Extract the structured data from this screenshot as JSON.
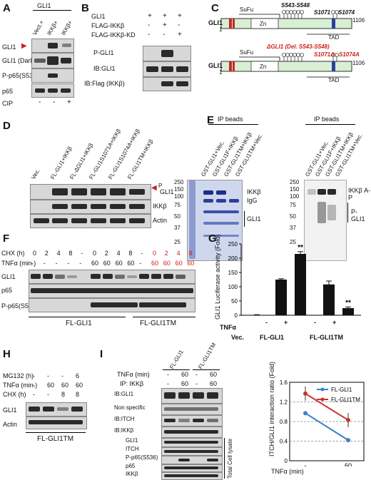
{
  "panels": {
    "A": "A",
    "B": "B",
    "C": "C",
    "D": "D",
    "E": "E",
    "F": "F",
    "G": "G",
    "H": "H",
    "I": "I"
  },
  "panelA": {
    "header": "GLI1",
    "lanes": [
      "Vect.+",
      "IKKβ+",
      "IKKβ+"
    ],
    "rows": [
      "GLI1",
      "GLI1 (Dark E.)",
      "P-p65(S536)",
      "p65"
    ],
    "cip_label": "CIP",
    "cip": [
      "-",
      "-",
      "+"
    ]
  },
  "panelB": {
    "treatments": [
      {
        "label": "GLI1",
        "signs": [
          "+",
          "+",
          "+"
        ]
      },
      {
        "label": "FLAG-IKKβ",
        "signs": [
          "-",
          "+",
          "-"
        ]
      },
      {
        "label": "FLAG-IKKβ-KD",
        "signs": [
          "-",
          "-",
          "+"
        ]
      }
    ],
    "rows": [
      "P-GLI1",
      "IB:GLI1",
      "IB:Flag (IKKβ)"
    ]
  },
  "panelC": {
    "gli1": "GLI1",
    "sufu": "SuFu",
    "zn": "Zn",
    "tad": "TAD",
    "end": "1106",
    "start": "1",
    "top_sites": "S543-S548",
    "s1071": "S1071",
    "s1074": "S1074",
    "mut_deletion": "ΔGLI1 (Del. S543-S548)",
    "s1071a": "S1071A",
    "s1074a": "S1074A"
  },
  "panelD": {
    "lanes": [
      "Vec.",
      "FL-GLI1+IKKβ",
      "FL-ΔGLI1+IKKβ",
      "FL-GLI1S1071A+IKKβ",
      "FL-GLI1S1074A+IKKβ",
      "FL-GLI1TM+IKKβ"
    ],
    "rows": [
      "P",
      "GLI1",
      "IKKβ",
      "Actin"
    ]
  },
  "panelE": {
    "title": "IP beads",
    "lanes": [
      "GST-GLI1+Vec.",
      "GST-GLI1F+IKKβ",
      "GST-GLI1TM+IKKβ",
      "GST-GLI1TM+Vec."
    ],
    "mw": [
      "250",
      "150",
      "100",
      "75",
      "50",
      "37",
      "25"
    ],
    "left_labels": [
      "IKKβ",
      "IgG",
      "GLI1"
    ],
    "right_labels": [
      "IKKβ A-P",
      "P-GLI1"
    ]
  },
  "panelF": {
    "chx_label": "CHX (h)",
    "tnf_label": "TNFα (min.)",
    "chx": [
      "0",
      "2",
      "4",
      "8",
      "-",
      "0",
      "2",
      "4",
      "8",
      "-",
      "0",
      "2",
      "4",
      "8"
    ],
    "tnf": [
      "-",
      "-",
      "-",
      "-",
      "-",
      "60",
      "60",
      "60",
      "60",
      "-",
      "60",
      "60",
      "60",
      "60"
    ],
    "rows": [
      "GLI1",
      "p65",
      "P-p65(S536)"
    ],
    "groups": [
      "FL-GLI1",
      "FL-GLI1TM"
    ]
  },
  "panelG": {
    "ylabel": "GLI1 Luciferase activity (Fold)",
    "tnf_label": "TNFα",
    "groups": [
      "Vec.",
      "FL-GLI1",
      "FL-GLI1TM"
    ],
    "sig": "**"
  },
  "chart_data": [
    {
      "type": "bar",
      "ylabel": "GLI1 Luciferase activity (Fold)",
      "categories": [
        "Vec.",
        "FL-GLI1 −",
        "FL-GLI1 +",
        "FL-GLI1TM −",
        "FL-GLI1TM +"
      ],
      "values": [
        1,
        125,
        215,
        108,
        25
      ],
      "errors": [
        1,
        3,
        8,
        12,
        4
      ],
      "yticks": [
        "0",
        "50",
        "100",
        "150",
        "200",
        "250"
      ],
      "ylim": [
        0,
        250
      ]
    },
    {
      "type": "line",
      "ylabel": "ITCH/GLI1 interaction ratio (Fold)",
      "categories": [
        "-",
        "60"
      ],
      "xlabel": "TNFα (min)",
      "series": [
        {
          "name": "FL-GLI1",
          "values": [
            0.97,
            0.42
          ],
          "color": "#3a7fc9"
        },
        {
          "name": "FL-GLI1TM",
          "values": [
            1.37,
            0.83
          ],
          "color": "#c8322a"
        }
      ],
      "yticks": [
        "0",
        "0.4",
        "0.8",
        "1.2",
        "1.6"
      ],
      "ylim": [
        0,
        1.6
      ]
    }
  ],
  "panelH": {
    "rows_labels": [
      "MG132 (h)",
      "TNFα (min.)",
      "CHX (h)"
    ],
    "mg132": [
      "-",
      "-",
      "-",
      "6"
    ],
    "tnf": [
      "-",
      "60",
      "60",
      "60"
    ],
    "chx": [
      "-",
      "-",
      "8",
      "8"
    ],
    "bands": [
      "GLI1",
      "Actin"
    ],
    "group": "FL-GLI1TM"
  },
  "panelI": {
    "cols": [
      "FL-GLI1",
      "FL-GLI1TM"
    ],
    "tnf_label": "TNFα (min)",
    "tnf": [
      "-",
      "60",
      "-",
      "60"
    ],
    "ip_label": "IP: IKKβ",
    "ip": [
      "-",
      "60",
      "-",
      "60"
    ],
    "rows": [
      "IB:GLI1",
      "Non specific",
      "IB:ITCH",
      "IB:IKKβ",
      "GLI1",
      "ITCH",
      "P-p65(S536)",
      "p65",
      "IKKβ"
    ],
    "lysate": "Total Cell lysate"
  }
}
